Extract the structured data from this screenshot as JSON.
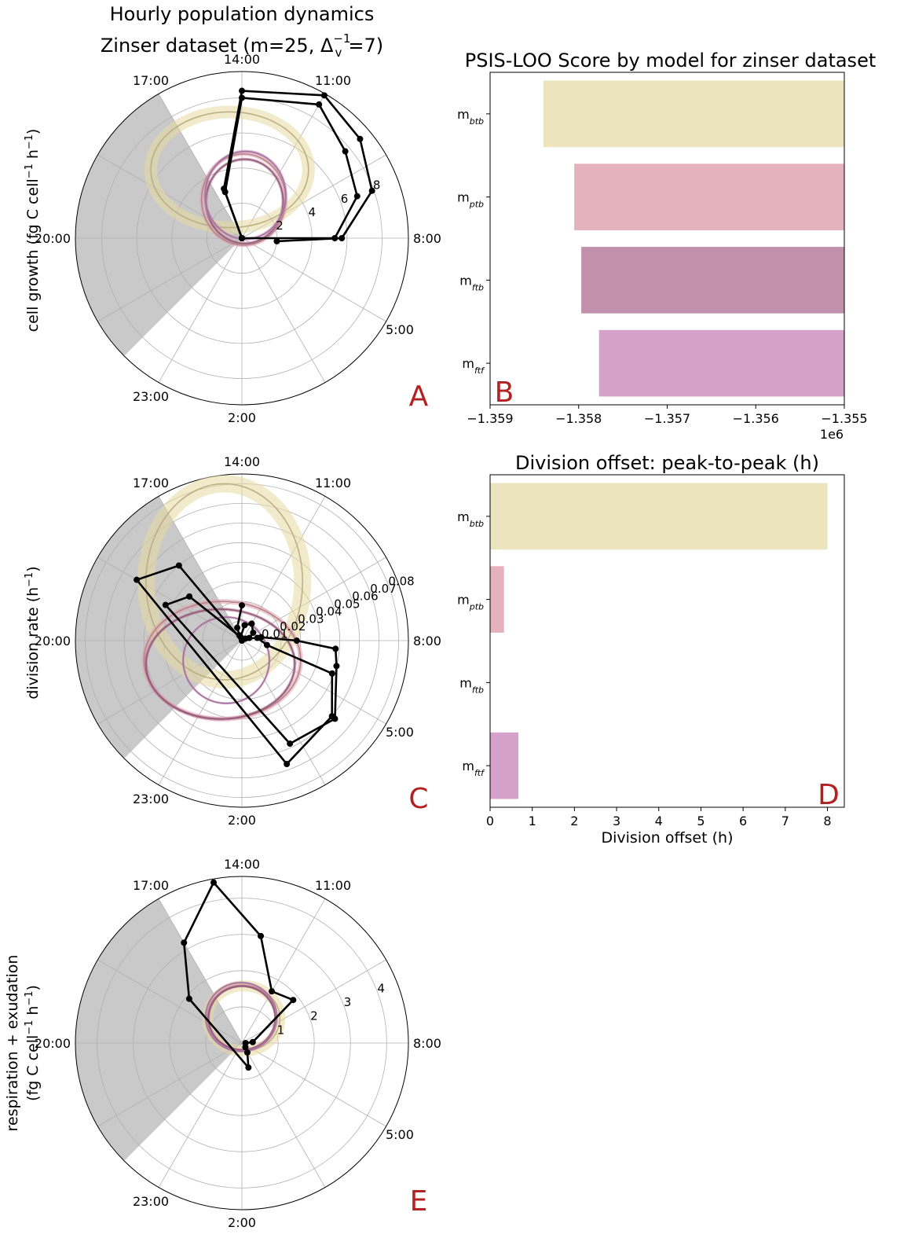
{
  "figure": {
    "title_line1": "Hourly population dynamics",
    "title_line2_prefix": "Zinser dataset (m=25, Δ",
    "title_line2_sub": "v",
    "title_line2_sup": "−1",
    "title_line2_suffix": "=7)",
    "palette": {
      "btb": "#e6d9a0",
      "ptb": "#dea1aa",
      "ftb": "#b06e90",
      "ftf": "#c98bbd",
      "night": "#c9c9c9",
      "observed": "#000000",
      "panel_label": "#b22222"
    }
  },
  "chart_data": [
    {
      "id": "A",
      "type": "line",
      "coordinate_system": "polar",
      "panel_label": "A",
      "ylabel_parts": [
        "cell growth (fg C cell",
        "−1",
        " h",
        "−1",
        ")"
      ],
      "angular_ticks": [
        "14:00",
        "11:00",
        "8:00",
        "5:00",
        "2:00",
        "23:00",
        "20:00",
        "17:00"
      ],
      "radial_ticks": [
        2,
        4,
        6,
        8
      ],
      "rmax": 9.5,
      "night_hours": [
        20,
        6.5
      ],
      "observed": [
        {
          "name": "obs1",
          "points": [
            [
              8,
              0
            ],
            [
              8,
              5.3
            ],
            [
              10,
              7.0
            ],
            [
              12,
              7.7
            ],
            [
              14,
              8.8
            ],
            [
              17,
              8.0
            ],
            [
              19,
              2.8
            ],
            [
              20,
              0
            ]
          ]
        },
        {
          "name": "obs2",
          "points": [
            [
              7.5,
              2.0
            ],
            [
              8,
              5.7
            ],
            [
              10,
              7.9
            ],
            [
              12,
              8.8
            ],
            [
              14,
              9.4
            ],
            [
              17,
              8.4
            ],
            [
              19,
              3.0
            ],
            [
              20,
              0
            ]
          ]
        }
      ],
      "model_loops": [
        {
          "model": "btb",
          "center": [
            -0.7,
            3.9
          ],
          "rx": 4.5,
          "ry": 3.3,
          "width": 16
        },
        {
          "model": "ptb",
          "center": [
            0.1,
            2.2
          ],
          "rx": 2.4,
          "ry": 2.6,
          "width": 5
        },
        {
          "model": "ftb",
          "center": [
            0.15,
            2.1
          ],
          "rx": 2.2,
          "ry": 2.4,
          "width": 4
        },
        {
          "model": "ftf",
          "center": [
            0.2,
            2.45
          ],
          "rx": 2.3,
          "ry": 2.5,
          "width": 4
        }
      ]
    },
    {
      "id": "B",
      "type": "bar",
      "orientation": "horizontal",
      "panel_label": "B",
      "title": "PSIS-LOO Score by model for zinser dataset",
      "categories": [
        {
          "base": "m",
          "sub": "btb"
        },
        {
          "base": "m",
          "sub": "ptb"
        },
        {
          "base": "m",
          "sub": "ftb"
        },
        {
          "base": "m",
          "sub": "ftf"
        }
      ],
      "values": [
        -1.3584,
        -1.35805,
        -1.35797,
        -1.35777
      ],
      "xlim": [
        -1.359,
        -1.355
      ],
      "xticks": [
        -1.359,
        -1.358,
        -1.357,
        -1.356,
        -1.355
      ],
      "xtick_labels": [
        "−1.359",
        "−1.358",
        "−1.357",
        "−1.356",
        "−1.355"
      ],
      "offset_text": "1e6",
      "colors": [
        "#ece4bd",
        "#e5b2bb",
        "#c190aa",
        "#d5a0ca"
      ]
    },
    {
      "id": "C",
      "type": "line",
      "coordinate_system": "polar",
      "panel_label": "C",
      "ylabel_parts": [
        "division rate (h",
        "−1",
        ")"
      ],
      "angular_ticks": [
        "14:00",
        "11:00",
        "8:00",
        "5:00",
        "2:00",
        "23:00",
        "20:00",
        "17:00"
      ],
      "radial_ticks": [
        0.01,
        0.02,
        0.03,
        0.04,
        0.05,
        0.06,
        0.07,
        0.08
      ],
      "radial_tick_labels": [
        "0.01",
        "0.02",
        "0.03",
        "0.04",
        "0.05",
        "0.06",
        "0.07",
        "0.08"
      ],
      "rmax": 0.085,
      "night_hours": [
        20,
        6.5
      ],
      "observed": [
        {
          "name": "obs1",
          "points": [
            [
              17,
              0.018
            ],
            [
              19,
              0.007
            ],
            [
              19.5,
              0.003
            ],
            [
              20,
              0.0
            ],
            [
              21,
              0.05
            ],
            [
              23,
              0.062
            ],
            [
              1,
              0.067
            ],
            [
              4,
              0.06
            ],
            [
              6,
              0.049
            ],
            [
              7,
              0.013
            ],
            [
              9,
              0.008
            ],
            [
              11,
              0.002
            ]
          ]
        },
        {
          "name": "obs2",
          "points": [
            [
              10,
              0.004
            ],
            [
              11.5,
              0.007
            ],
            [
              14,
              0.01
            ],
            [
              16,
              0.008
            ],
            [
              19,
              0.002
            ],
            [
              22,
              0.035
            ],
            [
              23.5,
              0.043
            ],
            [
              1.5,
              0.058
            ],
            [
              4,
              0.062
            ],
            [
              6.5,
              0.05
            ],
            [
              7.5,
              0.048
            ],
            [
              8,
              0.028
            ],
            [
              9,
              0.01
            ]
          ]
        }
      ],
      "model_loops": [
        {
          "model": "btb",
          "center": [
            -0.009,
            0.03
          ],
          "rx": 0.04,
          "ry": 0.05,
          "width": 22
        },
        {
          "model": "ptb",
          "center": [
            -0.01,
            -0.01
          ],
          "rx": 0.04,
          "ry": 0.03,
          "width": 6
        },
        {
          "model": "ftb",
          "center": [
            -0.011,
            -0.012
          ],
          "rx": 0.038,
          "ry": 0.028,
          "width": 4
        },
        {
          "model": "ftf",
          "center": [
            -0.008,
            -0.01
          ],
          "rx": 0.022,
          "ry": 0.022,
          "width": 3
        }
      ]
    },
    {
      "id": "D",
      "type": "bar",
      "orientation": "horizontal",
      "panel_label": "D",
      "title": "Division offset: peak-to-peak (h)",
      "xlabel": "Division offset (h)",
      "categories": [
        {
          "base": "m",
          "sub": "btb"
        },
        {
          "base": "m",
          "sub": "ptb"
        },
        {
          "base": "m",
          "sub": "ftb"
        },
        {
          "base": "m",
          "sub": "ftf"
        }
      ],
      "values": [
        8.0,
        0.33,
        0.0,
        0.67
      ],
      "xlim": [
        0,
        8.4
      ],
      "xticks": [
        0,
        1,
        2,
        3,
        4,
        5,
        6,
        7,
        8
      ],
      "colors": [
        "#ece4bd",
        "#e5b2bb",
        "#c190aa",
        "#d5a0ca"
      ]
    },
    {
      "id": "E",
      "type": "line",
      "coordinate_system": "polar",
      "panel_label": "E",
      "ylabel_line1": "respiration + exudation",
      "ylabel_parts": [
        "(fg C cell",
        "−1",
        " h",
        "−1",
        ")"
      ],
      "angular_ticks": [
        "14:00",
        "11:00",
        "8:00",
        "5:00",
        "2:00",
        "23:00",
        "20:00",
        "17:00"
      ],
      "radial_ticks": [
        1,
        2,
        3,
        4
      ],
      "rmax": 4.6,
      "night_hours": [
        20,
        6.5
      ],
      "observed": [
        {
          "name": "obs1",
          "points": [
            [
              8,
              0.1
            ],
            [
              8.5,
              0.3
            ],
            [
              12,
              1.85
            ],
            [
              14,
              1.65
            ],
            [
              16,
              3.0
            ],
            [
              18,
              4.5
            ],
            [
              20,
              3.2
            ],
            [
              22,
              1.9
            ],
            [
              0.5,
              0.7
            ],
            [
              2,
              0.3
            ],
            [
              3,
              0.15
            ]
          ]
        }
      ],
      "model_loops": [
        {
          "model": "btb",
          "center": [
            0.05,
            0.68
          ],
          "rx": 1.0,
          "ry": 0.9,
          "width": 14
        },
        {
          "model": "ptb",
          "center": [
            0.0,
            0.7
          ],
          "rx": 0.95,
          "ry": 0.9,
          "width": 5
        },
        {
          "model": "ftb",
          "center": [
            0.0,
            0.69
          ],
          "rx": 0.92,
          "ry": 0.88,
          "width": 3
        },
        {
          "model": "ftf",
          "center": [
            -0.02,
            0.72
          ],
          "rx": 0.98,
          "ry": 0.95,
          "width": 3
        }
      ]
    }
  ]
}
